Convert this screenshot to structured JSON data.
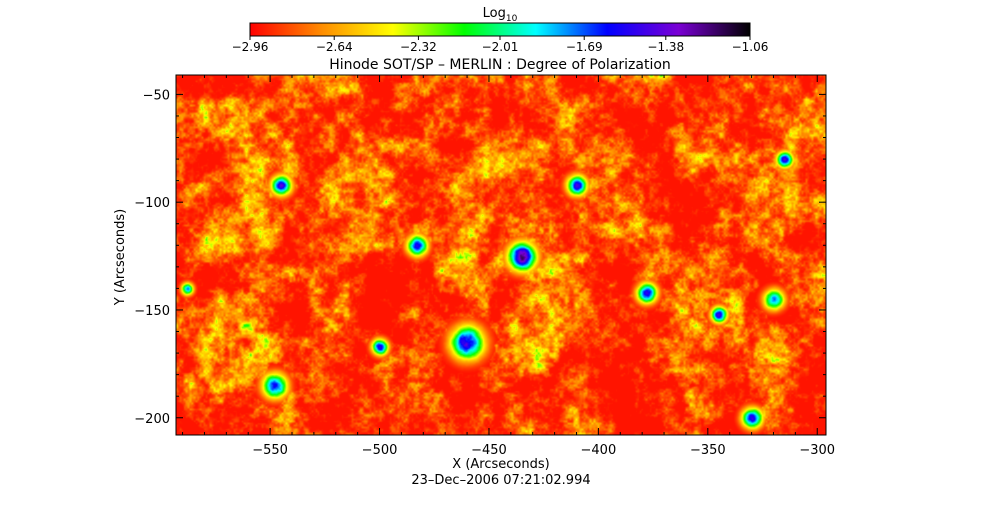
{
  "chart_data": {
    "type": "heatmap",
    "title": "Hinode SOT/SP – MERLIN : Degree of Polarization",
    "xlabel": "X (Arcseconds)",
    "ylabel": "Y (Arcseconds)",
    "timestamp": "23–Dec–2006 07:21:02.994",
    "xlim": [
      -593,
      -296
    ],
    "ylim": [
      -208,
      -41
    ],
    "x_ticks": [
      -550,
      -500,
      -450,
      -400,
      -350,
      -300
    ],
    "x_tick_labels": [
      "−550",
      "−500",
      "−450",
      "−400",
      "−350",
      "−300"
    ],
    "y_ticks": [
      -50,
      -100,
      -150,
      -200
    ],
    "y_tick_labels": [
      "−50",
      "−100",
      "−150",
      "−200"
    ],
    "colorbar": {
      "label_base": "Log",
      "label_sub": "10",
      "range": [
        -2.96,
        -1.06
      ],
      "ticks": [
        -2.96,
        -2.64,
        -2.32,
        -2.01,
        -1.69,
        -1.38,
        -1.06
      ],
      "tick_labels": [
        "−2.96",
        "−2.64",
        "−2.32",
        "−2.01",
        "−1.69",
        "−1.38",
        "−1.06"
      ],
      "colormap": [
        "#ff0000",
        "#ff8c00",
        "#ffff00",
        "#00ff00",
        "#00ffff",
        "#0000ff",
        "#7a00d4",
        "#000000"
      ]
    },
    "features": [
      {
        "x": -435,
        "y": -125,
        "r": 7,
        "v": -1.35
      },
      {
        "x": -460,
        "y": -165,
        "r": 8,
        "v": -1.3
      },
      {
        "x": -548,
        "y": -185,
        "r": 6,
        "v": -1.45
      },
      {
        "x": -545,
        "y": -92,
        "r": 5,
        "v": -1.55
      },
      {
        "x": -410,
        "y": -92,
        "r": 5,
        "v": -1.55
      },
      {
        "x": -378,
        "y": -142,
        "r": 5,
        "v": -1.5
      },
      {
        "x": -483,
        "y": -120,
        "r": 5,
        "v": -1.5
      },
      {
        "x": -320,
        "y": -145,
        "r": 5,
        "v": -1.55
      },
      {
        "x": -330,
        "y": -200,
        "r": 5,
        "v": -1.45
      },
      {
        "x": -345,
        "y": -152,
        "r": 4,
        "v": -1.5
      },
      {
        "x": -315,
        "y": -80,
        "r": 4,
        "v": -1.55
      },
      {
        "x": -500,
        "y": -167,
        "r": 4,
        "v": -1.5
      },
      {
        "x": -588,
        "y": -140,
        "r": 3,
        "v": -1.6
      }
    ]
  }
}
